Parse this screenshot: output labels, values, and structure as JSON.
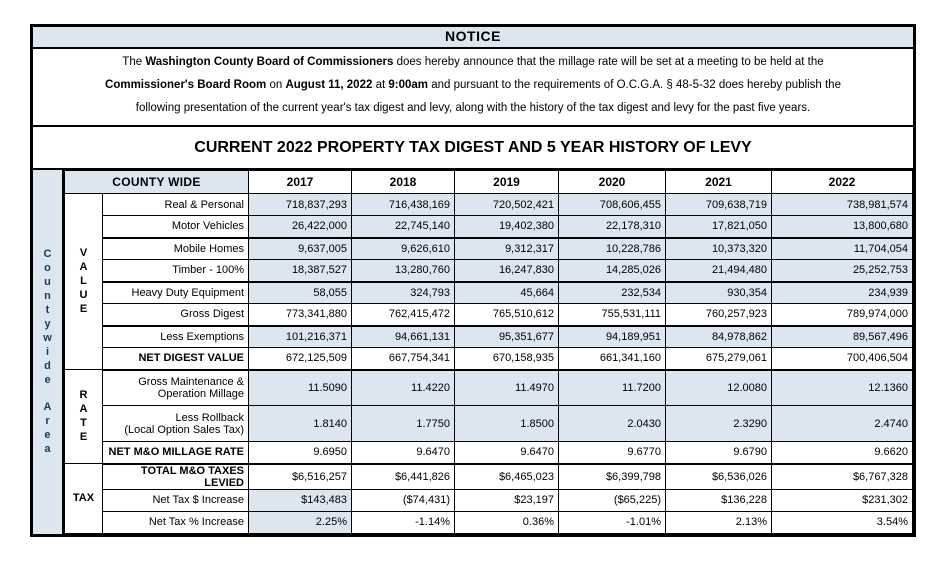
{
  "colors": {
    "shade_blue": "#dce6f1",
    "border_black": "#000000",
    "side_label_text": "#1f3864"
  },
  "notice": {
    "header": "NOTICE",
    "body": [
      {
        "pre": "The ",
        "bold": "Washington County Board of Commissioners",
        "post": " does hereby announce that the millage rate will be set at a meeting to be held at the"
      },
      {
        "bold1": "Commissioner's Board Room",
        "mid1": " on ",
        "bold2": "August 11, 2022",
        "mid2": " at ",
        "bold3": "9:00am",
        "post": " and pursuant to the requirements of O.C.G.A. § 48-5-32 does hereby publish the"
      },
      {
        "text": "following presentation of the current year's tax digest and levy, along with the history of the tax digest and levy for the past five years."
      }
    ]
  },
  "main_title": "CURRENT 2022 PROPERTY TAX DIGEST AND 5 YEAR HISTORY OF LEVY",
  "table": {
    "side_label_words": [
      "Countywide",
      "Area"
    ],
    "corner_label": "COUNTY WIDE",
    "years": [
      "2017",
      "2018",
      "2019",
      "2020",
      "2021",
      "2022"
    ],
    "groups": [
      {
        "label": "VALUE",
        "stacked": true,
        "rows": 8
      },
      {
        "label": "RATE",
        "stacked": true,
        "rows": 3
      },
      {
        "label": "TAX",
        "stacked": false,
        "rows": 3
      }
    ],
    "rows": [
      {
        "label": "Real & Personal",
        "values": [
          "718,837,293",
          "716,438,169",
          "720,502,421",
          "708,606,455",
          "709,638,719",
          "738,981,574"
        ],
        "shaded": "all",
        "emphasis": false
      },
      {
        "label": "Motor Vehicles",
        "values": [
          "26,422,000",
          "22,745,140",
          "19,402,380",
          "22,178,310",
          "17,821,050",
          "13,800,680"
        ],
        "shaded": "all",
        "emphasis": false,
        "heavy_bottom": true
      },
      {
        "label": "Mobile Homes",
        "values": [
          "9,637,005",
          "9,626,610",
          "9,312,317",
          "10,228,786",
          "10,373,320",
          "11,704,054"
        ],
        "shaded": "all",
        "emphasis": false
      },
      {
        "label": "Timber - 100%",
        "values": [
          "18,387,527",
          "13,280,760",
          "16,247,830",
          "14,285,026",
          "21,494,480",
          "25,252,753"
        ],
        "shaded": "all",
        "emphasis": false,
        "heavy_bottom": true
      },
      {
        "label": "Heavy Duty Equipment",
        "values": [
          "58,055",
          "324,793",
          "45,664",
          "232,534",
          "930,354",
          "234,939"
        ],
        "shaded": "all",
        "emphasis": false
      },
      {
        "label": "Gross Digest",
        "values": [
          "773,341,880",
          "762,415,472",
          "765,510,612",
          "755,531,111",
          "760,257,923",
          "789,974,000"
        ],
        "shaded": "none",
        "emphasis": false,
        "heavy_bottom": true
      },
      {
        "label": "Less Exemptions",
        "values": [
          "101,216,371",
          "94,661,131",
          "95,351,677",
          "94,189,951",
          "84,978,862",
          "89,567,496"
        ],
        "shaded": "all",
        "emphasis": false
      },
      {
        "label": "NET DIGEST VALUE",
        "values": [
          "672,125,509",
          "667,754,341",
          "670,158,935",
          "661,341,160",
          "675,279,061",
          "700,406,504"
        ],
        "shaded": "none",
        "emphasis": true,
        "section_end": true
      },
      {
        "label": "Gross Maintenance &\nOperation Millage",
        "values": [
          "11.5090",
          "11.4220",
          "11.4970",
          "11.7200",
          "12.0080",
          "12.1360"
        ],
        "shaded": "all",
        "emphasis": false,
        "tall": true
      },
      {
        "label": "Less Rollback\n(Local Option Sales Tax)",
        "values": [
          "1.8140",
          "1.7750",
          "1.8500",
          "2.0430",
          "2.3290",
          "2.4740"
        ],
        "shaded": "all",
        "emphasis": false,
        "tall": true
      },
      {
        "label": "NET M&O MILLAGE RATE",
        "values": [
          "9.6950",
          "9.6470",
          "9.6470",
          "9.6770",
          "9.6790",
          "9.6620"
        ],
        "shaded": "none",
        "emphasis": true,
        "section_end": true
      },
      {
        "label": "TOTAL M&O TAXES LEVIED",
        "values": [
          "$6,516,257",
          "$6,441,826",
          "$6,465,023",
          "$6,399,798",
          "$6,536,026",
          "$6,767,328"
        ],
        "shaded": "none",
        "emphasis": true
      },
      {
        "label": "Net Tax $ Increase",
        "values": [
          "$143,483",
          "($74,431)",
          "$23,197",
          "($65,225)",
          "$136,228",
          "$231,302"
        ],
        "shaded": "first",
        "emphasis": false
      },
      {
        "label": "Net Tax % Increase",
        "values": [
          "2.25%",
          "-1.14%",
          "0.36%",
          "-1.01%",
          "2.13%",
          "3.54%"
        ],
        "shaded": "first",
        "emphasis": false
      }
    ]
  }
}
